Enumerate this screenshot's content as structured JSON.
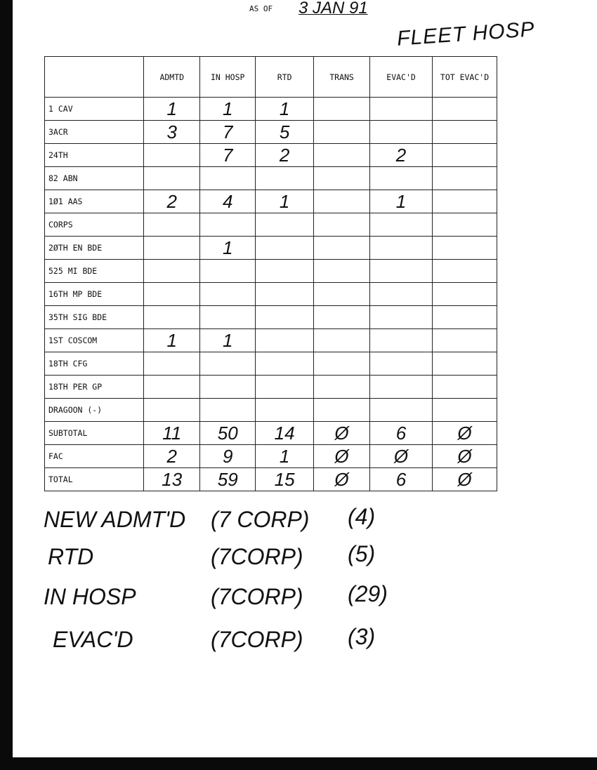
{
  "header": {
    "as_of_label": "AS OF",
    "date": "3 JAN 91",
    "title": "FLEET HOSP"
  },
  "columns": [
    "",
    "ADMTD",
    "IN HOSP",
    "RTD",
    "TRANS",
    "EVAC'D",
    "TOT EVAC'D"
  ],
  "rows": [
    {
      "unit": "1 CAV",
      "values": [
        "1",
        "1",
        "1",
        "",
        "",
        ""
      ]
    },
    {
      "unit": "3ACR",
      "values": [
        "3",
        "7",
        "5",
        "",
        "",
        ""
      ]
    },
    {
      "unit": "24TH",
      "values": [
        "",
        "7",
        "2",
        "",
        "2",
        ""
      ]
    },
    {
      "unit": "82 ABN",
      "values": [
        "",
        "",
        "",
        "",
        "",
        ""
      ]
    },
    {
      "unit": "1Ø1 AAS",
      "values": [
        "2",
        "4",
        "1",
        "",
        "1",
        ""
      ]
    },
    {
      "unit": "CORPS",
      "values": [
        "",
        "",
        "",
        "",
        "",
        ""
      ]
    },
    {
      "unit": "2ØTH EN BDE",
      "values": [
        "",
        "1",
        "",
        "",
        "",
        ""
      ]
    },
    {
      "unit": "525 MI BDE",
      "values": [
        "",
        "",
        "",
        "",
        "",
        ""
      ]
    },
    {
      "unit": "16TH MP BDE",
      "values": [
        "",
        "",
        "",
        "",
        "",
        ""
      ]
    },
    {
      "unit": "35TH SIG BDE",
      "values": [
        "",
        "",
        "",
        "",
        "",
        ""
      ]
    },
    {
      "unit": "1ST COSCOM",
      "values": [
        "1",
        "1",
        "",
        "",
        "",
        ""
      ]
    },
    {
      "unit": "18TH CFG",
      "values": [
        "",
        "",
        "",
        "",
        "",
        ""
      ]
    },
    {
      "unit": "18TH PER GP",
      "values": [
        "",
        "",
        "",
        "",
        "",
        ""
      ]
    },
    {
      "unit": "DRAGOON (-)",
      "values": [
        "",
        "",
        "",
        "",
        "",
        ""
      ]
    },
    {
      "unit": "SUBTOTAL",
      "values": [
        "11",
        "50",
        "14",
        "Ø",
        "6",
        "Ø"
      ]
    },
    {
      "unit": "FAC",
      "values": [
        "2",
        "9",
        "1",
        "Ø",
        "Ø",
        "Ø"
      ]
    },
    {
      "unit": "TOTAL",
      "values": [
        "13",
        "59",
        "15",
        "Ø",
        "6",
        "Ø"
      ]
    }
  ],
  "notes": [
    {
      "label": "NEW ADMT'D",
      "corp": "(7 CORP)",
      "count": "(4)"
    },
    {
      "label": "RTD",
      "corp": "(7CORP)",
      "count": "(5)"
    },
    {
      "label": "IN HOSP",
      "corp": "(7CORP)",
      "count": "(29)"
    },
    {
      "label": "EVAC'D",
      "corp": "(7CORP)",
      "count": "(3)"
    }
  ]
}
